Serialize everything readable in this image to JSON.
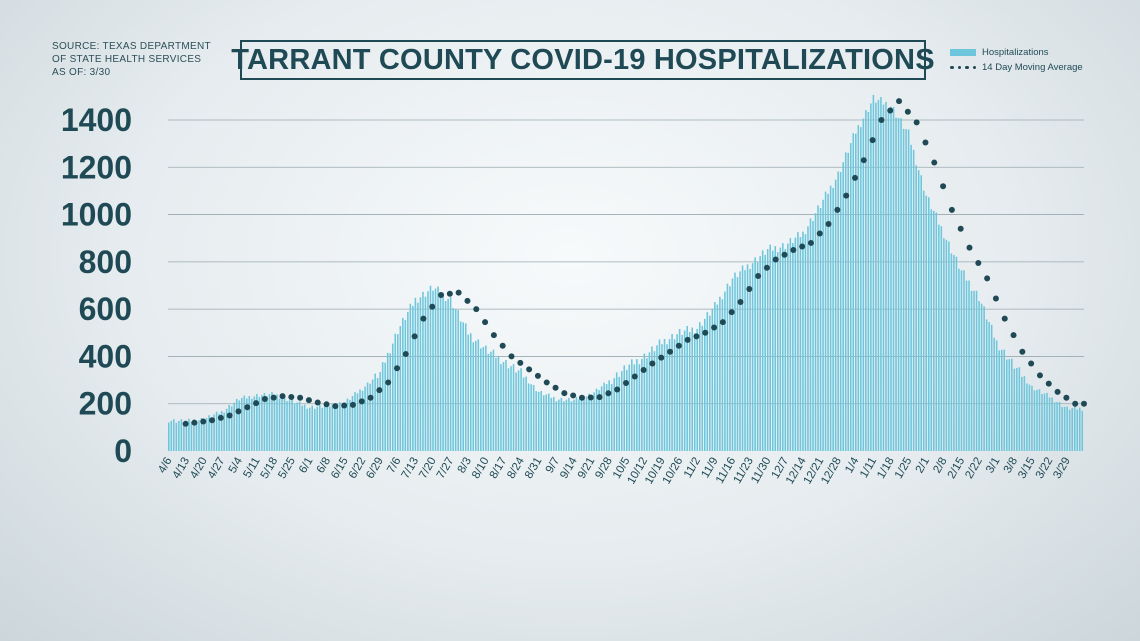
{
  "source": {
    "line1": "SOURCE: TEXAS DEPARTMENT",
    "line2": "OF STATE HEALTH SERVICES",
    "line3": "AS OF: 3/30"
  },
  "chart_data": {
    "type": "bar",
    "title": "TARRANT COUNTY COVID-19 HOSPITALIZATIONS",
    "legend": {
      "position": "top-right",
      "bar_label": "Hospitalizations",
      "line_label": "14 Day Moving Average"
    },
    "ylim": [
      0,
      1500
    ],
    "y_ticks": [
      0,
      200,
      400,
      600,
      800,
      1000,
      1200,
      1400
    ],
    "grid": true,
    "colors": {
      "bars": "#6ec6dc",
      "moving_average": "#1f4a55",
      "grid": "#9aaab0",
      "text": "#1f4a55"
    },
    "x_tick_labels": [
      "4/6",
      "4/13",
      "4/20",
      "4/27",
      "5/4",
      "5/11",
      "5/18",
      "5/25",
      "6/1",
      "6/8",
      "6/15",
      "6/22",
      "6/29",
      "7/6",
      "7/13",
      "7/20",
      "7/27",
      "8/3",
      "8/10",
      "8/17",
      "8/24",
      "8/31",
      "9/7",
      "9/14",
      "9/21",
      "9/28",
      "10/5",
      "10/12",
      "10/19",
      "10/26",
      "11/2",
      "11/9",
      "11/16",
      "11/23",
      "11/30",
      "12/7",
      "12/14",
      "12/21",
      "12/28",
      "1/4",
      "1/11",
      "1/18",
      "1/25",
      "2/1",
      "2/8",
      "2/15",
      "2/22",
      "3/1",
      "3/8",
      "3/15",
      "3/22",
      "3/29"
    ],
    "weekly_hospitalizations": [
      130,
      125,
      135,
      165,
      220,
      235,
      240,
      210,
      185,
      190,
      205,
      265,
      330,
      510,
      640,
      690,
      640,
      500,
      430,
      380,
      330,
      250,
      220,
      215,
      240,
      295,
      355,
      400,
      460,
      500,
      520,
      610,
      730,
      790,
      850,
      870,
      920,
      1040,
      1170,
      1350,
      1490,
      1460,
      1340,
      1080,
      920,
      760,
      650,
      460,
      360,
      270,
      230,
      180
    ],
    "moving_average_14day": [
      110,
      120,
      130,
      150,
      185,
      220,
      232,
      225,
      205,
      190,
      195,
      225,
      290,
      410,
      560,
      660,
      670,
      600,
      490,
      400,
      345,
      290,
      245,
      225,
      228,
      260,
      315,
      370,
      420,
      470,
      500,
      545,
      630,
      740,
      810,
      850,
      880,
      960,
      1080,
      1230,
      1400,
      1480,
      1390,
      1220,
      1020,
      860,
      730,
      560,
      420,
      320,
      250,
      200
    ]
  }
}
